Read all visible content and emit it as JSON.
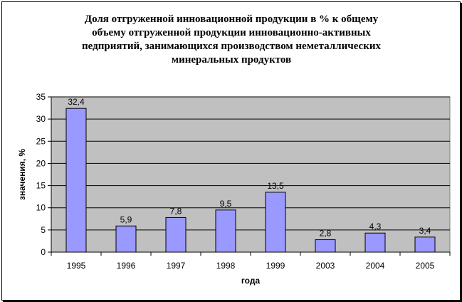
{
  "chart_data": {
    "type": "bar",
    "title": "Доля отгруженной инновационной продукции в % к общему объему отгруженной продукции инновационно-активных педприятий, занимающихся производством неметаллических минеральных продуктов",
    "title_lines": [
      "Доля отгруженной инновационной продукции в % к общему",
      "объему отгруженной продукции инновационно-активных",
      "педприятий, занимающихся производством неметаллических",
      "минеральных продуктов"
    ],
    "xlabel": "года",
    "ylabel": "значения, %",
    "categories": [
      "1995",
      "1996",
      "1997",
      "1998",
      "1999",
      "2003",
      "2004",
      "2005"
    ],
    "values": [
      32.4,
      5.9,
      7.8,
      9.5,
      13.5,
      2.8,
      4.3,
      3.4
    ],
    "data_labels": [
      "32,4",
      "5,9",
      "7,8",
      "9,5",
      "13,5",
      "2,8",
      "4,3",
      "3,4"
    ],
    "ylim": [
      0,
      35
    ],
    "yticks": [
      0,
      5,
      10,
      15,
      20,
      25,
      30,
      35
    ],
    "grid": true,
    "legend": "none",
    "colors": {
      "bar_fill": "#9999FF",
      "plot_background": "#C0C0C0",
      "gridline": "#000000"
    }
  }
}
